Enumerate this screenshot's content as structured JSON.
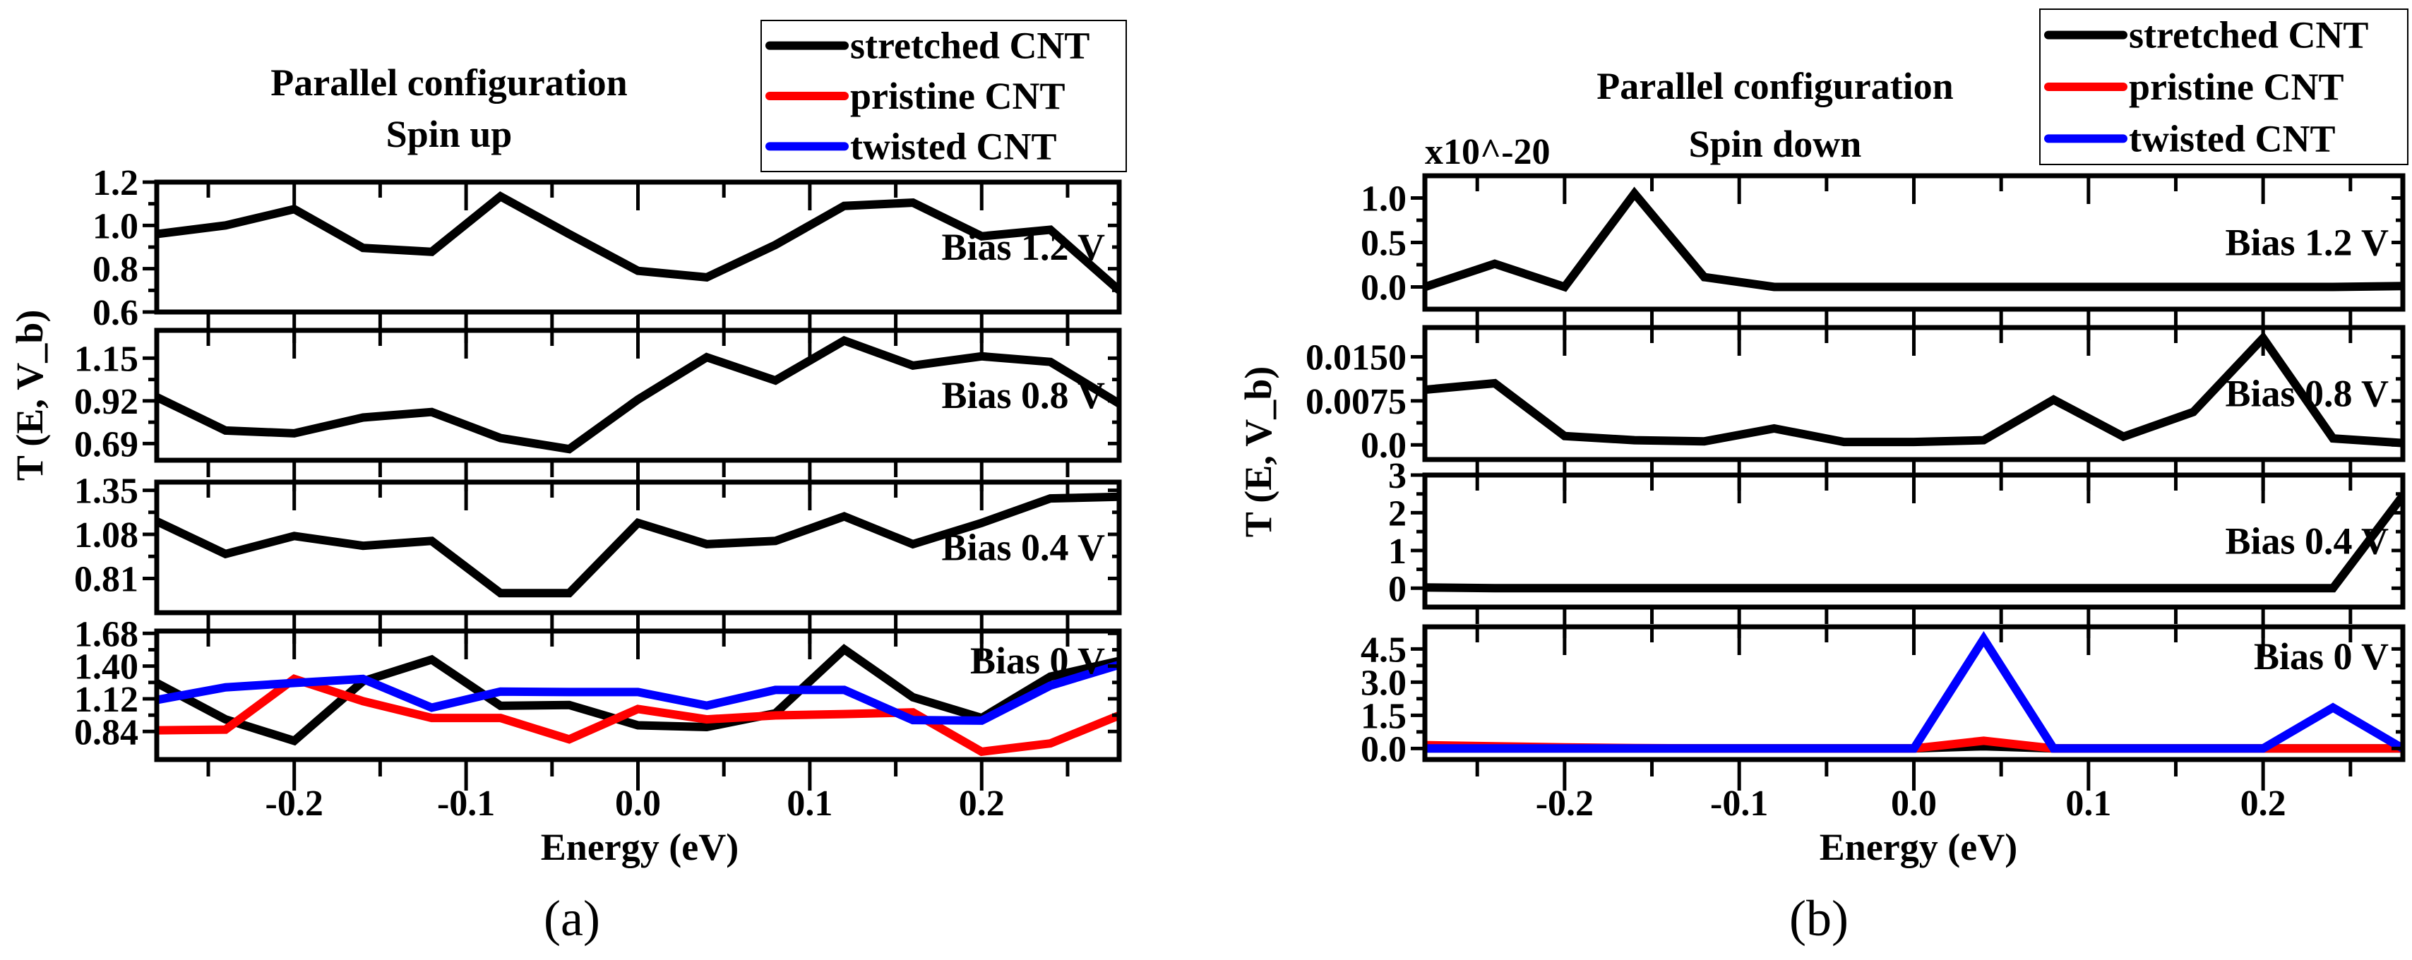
{
  "chart_data": [
    {
      "type": "line",
      "panel_caption": "(a)",
      "title_lines": [
        "Parallel configuration",
        "Spin up"
      ],
      "xlabel": "Energy (eV)",
      "ylabel": "T (E, V_b)",
      "multiplier_label": "",
      "legend": [
        {
          "name": "stretched CNT",
          "color": "#000000"
        },
        {
          "name": "pristine CNT",
          "color": "#ff0000"
        },
        {
          "name": "twisted CNT",
          "color": "#0000ff"
        }
      ],
      "legend_placement": "top-right",
      "xlim": [
        -0.28,
        0.28
      ],
      "xticks": [
        -0.2,
        -0.1,
        0.0,
        0.1,
        0.2
      ],
      "xticklabels": [
        "-0.2",
        "-0.1",
        "0.0",
        "0.1",
        "0.2"
      ],
      "x": [
        -0.28,
        -0.24,
        -0.2,
        -0.16,
        -0.12,
        -0.08,
        -0.04,
        0.0,
        0.04,
        0.08,
        0.12,
        0.16,
        0.2,
        0.24,
        0.28
      ],
      "subplots": [
        {
          "label": "Bias 1.2 V",
          "ylim": [
            0.6,
            1.2
          ],
          "yticks": [
            0.6,
            0.8,
            1.0,
            1.2
          ],
          "yticklabels": [
            "0.6",
            "0.8",
            "1.0",
            "1.2"
          ],
          "series": [
            {
              "name": "stretched CNT",
              "color": "#000000",
              "values": [
                0.96,
                1.0,
                1.075,
                0.896,
                0.878,
                1.134,
                0.96,
                0.79,
                0.76,
                0.91,
                1.09,
                1.105,
                0.95,
                0.98,
                0.7
              ]
            }
          ]
        },
        {
          "label": "Bias 0.8 V",
          "ylim": [
            0.6,
            1.3
          ],
          "yticks": [
            0.69,
            0.92,
            1.15
          ],
          "yticklabels": [
            "0.69",
            "0.92",
            "1.15"
          ],
          "series": [
            {
              "name": "stretched CNT",
              "color": "#000000",
              "values": [
                0.94,
                0.76,
                0.745,
                0.83,
                0.86,
                0.72,
                0.66,
                0.927,
                1.155,
                1.03,
                1.245,
                1.11,
                1.16,
                1.13,
                0.905
              ]
            }
          ]
        },
        {
          "label": "Bias 0.4 V",
          "ylim": [
            0.6,
            1.4
          ],
          "yticks": [
            0.81,
            1.08,
            1.35
          ],
          "yticklabels": [
            "0.81",
            "1.08",
            "1.35"
          ],
          "series": [
            {
              "name": "stretched CNT",
              "color": "#000000",
              "values": [
                1.16,
                0.96,
                1.07,
                1.01,
                1.04,
                0.72,
                0.72,
                1.15,
                1.02,
                1.04,
                1.19,
                1.02,
                1.15,
                1.3,
                1.31
              ]
            }
          ]
        },
        {
          "label": "Bias 0 V",
          "ylim": [
            0.6,
            1.7
          ],
          "yticks": [
            0.84,
            1.12,
            1.4,
            1.68
          ],
          "yticklabels": [
            "0.84",
            "1.12",
            "1.40",
            "1.68"
          ],
          "series": [
            {
              "name": "stretched CNT",
              "color": "#000000",
              "values": [
                1.256,
                0.944,
                0.76,
                1.27,
                1.456,
                1.06,
                1.067,
                0.893,
                0.878,
                0.996,
                1.544,
                1.133,
                0.956,
                1.31,
                1.444
              ]
            },
            {
              "name": "pristine CNT",
              "color": "#ff0000",
              "values": [
                0.85,
                0.856,
                1.29,
                1.1,
                0.956,
                0.956,
                0.773,
                1.033,
                0.944,
                0.978,
                0.989,
                1.004,
                0.667,
                0.738,
                0.978
              ]
            },
            {
              "name": "twisted CNT",
              "color": "#0000ff",
              "values": [
                1.11,
                1.218,
                1.256,
                1.29,
                1.044,
                1.182,
                1.178,
                1.178,
                1.062,
                1.196,
                1.196,
                0.938,
                0.933,
                1.233,
                1.411
              ]
            }
          ]
        }
      ]
    },
    {
      "type": "line",
      "panel_caption": "(b)",
      "title_lines": [
        "Parallel configuration",
        "Spin down"
      ],
      "xlabel": "Energy (eV)",
      "ylabel": "T (E, V_b)",
      "multiplier_label": "x10^-20",
      "legend": [
        {
          "name": "stretched CNT",
          "color": "#000000"
        },
        {
          "name": "pristine CNT",
          "color": "#ff0000"
        },
        {
          "name": "twisted CNT",
          "color": "#0000ff"
        }
      ],
      "legend_placement": "top-right",
      "xlim": [
        -0.28,
        0.28
      ],
      "xticks": [
        -0.2,
        -0.1,
        0.0,
        0.1,
        0.2
      ],
      "xticklabels": [
        "-0.2",
        "-0.1",
        "0.0",
        "0.1",
        "0.2"
      ],
      "x": [
        -0.28,
        -0.24,
        -0.2,
        -0.16,
        -0.12,
        -0.08,
        -0.04,
        0.0,
        0.04,
        0.08,
        0.12,
        0.16,
        0.2,
        0.24,
        0.28
      ],
      "subplots": [
        {
          "label": "Bias 1.2 V",
          "ylim": [
            -0.25,
            1.25
          ],
          "yticks": [
            0.0,
            0.5,
            1.0
          ],
          "yticklabels": [
            "0.0",
            "0.5",
            "1.0"
          ],
          "series": [
            {
              "name": "stretched CNT",
              "color": "#000000",
              "values": [
                0.0,
                0.26,
                0.0,
                1.05,
                0.11,
                0.0,
                0.0,
                0.0,
                0.0,
                0.0,
                0.0,
                0.0,
                0.0,
                0.0,
                0.01
              ]
            }
          ]
        },
        {
          "label": "Bias 0.8 V",
          "ylim": [
            -0.0025,
            0.02
          ],
          "yticks": [
            0.0,
            0.0075,
            0.015
          ],
          "yticklabels": [
            "0.0",
            "0.0075",
            "0.0150"
          ],
          "series": [
            {
              "name": "stretched CNT",
              "color": "#000000",
              "values": [
                0.0094,
                0.0105,
                0.0015,
                0.0008,
                0.0006,
                0.0028,
                0.0005,
                0.0005,
                0.0008,
                0.0077,
                0.0014,
                0.0056,
                0.0182,
                0.0011,
                0.0003
              ]
            }
          ]
        },
        {
          "label": "Bias 0.4 V",
          "ylim": [
            -0.5,
            3.0
          ],
          "yticks": [
            0,
            1,
            2,
            3
          ],
          "yticklabels": [
            "0",
            "1",
            "2",
            "3"
          ],
          "series": [
            {
              "name": "stretched CNT",
              "color": "#000000",
              "values": [
                0.02,
                0.0,
                0.0,
                0.0,
                0.0,
                0.0,
                0.0,
                0.0,
                0.0,
                0.0,
                0.0,
                0.0,
                0.0,
                0.0,
                2.45
              ]
            }
          ]
        },
        {
          "label": "Bias 0 V",
          "ylim": [
            -0.5,
            5.5
          ],
          "yticks": [
            0.0,
            1.5,
            3.0,
            4.5
          ],
          "yticklabels": [
            "0.0",
            "1.5",
            "3.0",
            "4.5"
          ],
          "series": [
            {
              "name": "stretched CNT",
              "color": "#000000",
              "values": [
                0,
                0,
                0,
                0,
                0,
                0,
                0,
                0,
                0.1,
                0,
                0,
                0,
                0,
                0,
                0
              ]
            },
            {
              "name": "pristine CNT",
              "color": "#ff0000",
              "values": [
                0.15,
                0.1,
                0.05,
                0.02,
                0,
                0,
                0,
                0,
                0.35,
                0,
                0,
                0,
                0,
                0,
                0
              ]
            },
            {
              "name": "twisted CNT",
              "color": "#0000ff",
              "values": [
                0,
                0,
                0,
                0,
                0,
                0,
                0,
                0,
                4.95,
                0,
                0,
                0,
                0,
                1.85,
                0
              ]
            }
          ]
        }
      ]
    }
  ]
}
